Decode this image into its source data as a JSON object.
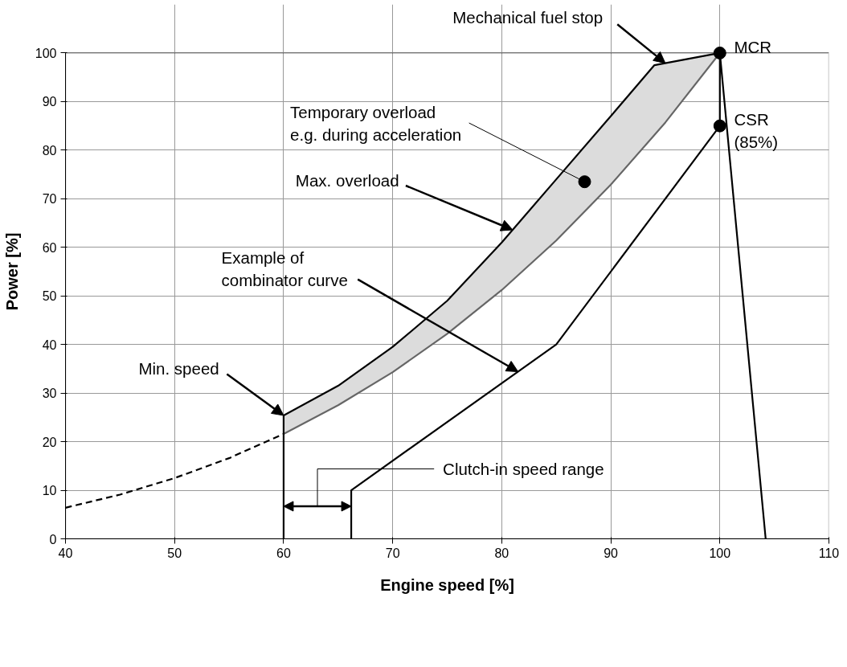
{
  "chart_data": {
    "type": "line",
    "xlabel": "Engine speed [%]",
    "ylabel": "Power [%]",
    "xlim": [
      40,
      110
    ],
    "ylim": [
      0,
      100
    ],
    "xticks": [
      40,
      50,
      60,
      70,
      80,
      90,
      100,
      110
    ],
    "yticks": [
      0,
      10,
      20,
      30,
      40,
      50,
      60,
      70,
      80,
      90,
      100
    ],
    "grid": true,
    "marker": "none",
    "series": [
      {
        "color": "#000000",
        "line_style": "dashed",
        "x": [
          40,
          45,
          50,
          55,
          60
        ],
        "values": [
          6.4,
          9.1,
          12.5,
          16.6,
          21.6
        ]
      },
      {
        "color": "#666666",
        "line_style": "solid",
        "x": [
          60,
          65,
          70,
          75,
          80,
          85,
          90,
          95,
          100
        ],
        "values": [
          21.6,
          27.5,
          34.3,
          42.2,
          51.2,
          61.4,
          72.9,
          85.7,
          100
        ]
      },
      {
        "color": "#000000",
        "line_style": "solid",
        "x": [
          60,
          65,
          70,
          75,
          80,
          85,
          90,
          94,
          100
        ],
        "values": [
          25.4,
          31.5,
          39.5,
          49,
          61,
          74,
          87,
          97.5,
          100
        ],
        "lower": [
          21.6,
          27.5,
          34.3,
          42.2,
          51.2,
          61.4,
          72.9,
          82.9,
          100
        ],
        "upper": [
          25.4,
          31.5,
          39.5,
          49,
          61,
          74,
          87,
          97.5,
          100
        ]
      },
      {
        "color": "#000000",
        "line_style": "solid",
        "x": [
          60,
          60
        ],
        "values": [
          0,
          25.4
        ]
      },
      {
        "color": "#000000",
        "line_style": "solid",
        "x": [
          66.2,
          66.2,
          85,
          100,
          100,
          104.2
        ],
        "values": [
          0,
          10,
          40,
          85,
          100,
          0
        ]
      },
      {
        "type": "scatter",
        "marker": "circle",
        "color": "#000000",
        "x": [
          100,
          100,
          87.6
        ],
        "values": [
          100,
          85,
          73.5
        ]
      }
    ],
    "annotations": [
      {
        "text": "Mechanical fuel stop",
        "x": 95,
        "y": 97.9
      },
      {
        "text": "MCR",
        "x": 100,
        "y": 100
      },
      {
        "text": "CSR\n(85%)",
        "x": 100,
        "y": 85
      },
      {
        "text": "Temporary overload\ne.g. during acceleration",
        "x": 87.6,
        "y": 73.5
      },
      {
        "text": "Max. overload",
        "x": 81,
        "y": 63.6
      },
      {
        "text": "Example of\ncombinator curve",
        "x": 81.5,
        "y": 34.4
      },
      {
        "text": "Min. speed",
        "x": 60,
        "y": 25.4
      },
      "Clutch-in speed range"
    ]
  }
}
